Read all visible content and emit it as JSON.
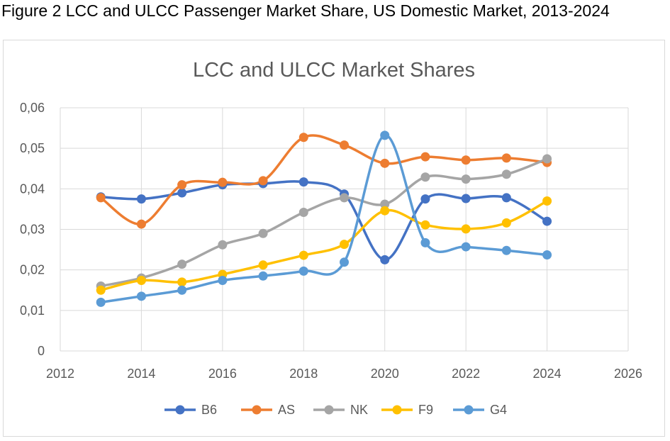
{
  "caption": "Figure 2 LCC and ULCC Passenger Market Share, US Domestic Market, 2013-2024",
  "chart_data": {
    "type": "line",
    "title": "LCC and ULCC Market Shares",
    "xlabel": "",
    "ylabel": "",
    "xlim": [
      2012,
      2026
    ],
    "ylim": [
      0,
      0.06
    ],
    "x_ticks": [
      2012,
      2014,
      2016,
      2018,
      2020,
      2022,
      2024,
      2026
    ],
    "x_tick_labels": [
      "2012",
      "2014",
      "2016",
      "2018",
      "2020",
      "2022",
      "2024",
      "2026"
    ],
    "y_ticks": [
      0,
      0.01,
      0.02,
      0.03,
      0.04,
      0.05,
      0.06
    ],
    "y_tick_labels": [
      "0",
      "0,01",
      "0,02",
      "0,03",
      "0,04",
      "0,05",
      "0,06"
    ],
    "grid": true,
    "smooth": true,
    "legend_position": "bottom",
    "x": [
      2013,
      2014,
      2015,
      2016,
      2017,
      2018,
      2019,
      2020,
      2021,
      2022,
      2023,
      2024
    ],
    "series": [
      {
        "name": "B6",
        "color": "#4472c4",
        "values": [
          0.038,
          0.0375,
          0.039,
          0.041,
          0.0413,
          0.0417,
          0.0387,
          0.0225,
          0.0375,
          0.0376,
          0.0378,
          0.032
        ]
      },
      {
        "name": "AS",
        "color": "#ed7d31",
        "values": [
          0.0378,
          0.0313,
          0.041,
          0.0416,
          0.042,
          0.0527,
          0.0508,
          0.0463,
          0.0479,
          0.0471,
          0.0476,
          0.0465
        ]
      },
      {
        "name": "NK",
        "color": "#a5a5a5",
        "values": [
          0.016,
          0.018,
          0.0214,
          0.0262,
          0.029,
          0.0342,
          0.0378,
          0.0362,
          0.0429,
          0.0424,
          0.0436,
          0.0474
        ]
      },
      {
        "name": "F9",
        "color": "#ffc000",
        "values": [
          0.015,
          0.0174,
          0.017,
          0.0189,
          0.0212,
          0.0236,
          0.0263,
          0.0346,
          0.0311,
          0.0301,
          0.0316,
          0.037
        ]
      },
      {
        "name": "G4",
        "color": "#5b9bd5",
        "values": [
          0.012,
          0.0135,
          0.015,
          0.0174,
          0.0185,
          0.0197,
          0.0219,
          0.0532,
          0.0267,
          0.0257,
          0.0248,
          0.0237
        ]
      }
    ]
  }
}
